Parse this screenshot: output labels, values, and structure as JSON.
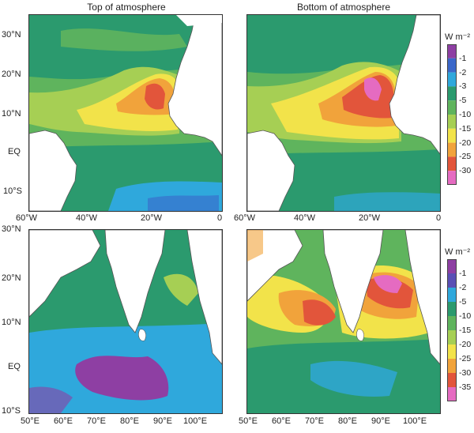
{
  "titles": {
    "left": "Top of atmosphere",
    "right": "Bottom of atmosphere"
  },
  "atlantic": {
    "lat_labels": [
      "30°N",
      "20°N",
      "10°N",
      "EQ",
      "10°S"
    ],
    "lon_labels": [
      "60°W",
      "40°W",
      "20°W",
      "0"
    ]
  },
  "indian": {
    "lat_labels": [
      "30°N",
      "20°N",
      "10°N",
      "EQ",
      "10°S"
    ],
    "lon_labels": [
      "50°E",
      "60°E",
      "70°E",
      "80°E",
      "90°E",
      "100°E"
    ]
  },
  "colorbar_top": {
    "unit": "W m⁻²",
    "levels": [
      "-1",
      "-2",
      "-3",
      "-5",
      "-10",
      "-15",
      "-20",
      "-25",
      "-30"
    ],
    "colors": [
      "#8e3fa3",
      "#3b67c9",
      "#2fa8dc",
      "#2b9a6e",
      "#5fb45d",
      "#a6cf54",
      "#f2e34a",
      "#f1a33b",
      "#e2553b",
      "#e56bc1"
    ]
  },
  "colorbar_bottom": {
    "unit": "W m⁻²",
    "levels": [
      "-1",
      "-2",
      "-5",
      "-10",
      "-15",
      "-20",
      "-25",
      "-30",
      "-35"
    ],
    "colors": [
      "#8e3fa3",
      "#5a4fb5",
      "#2fa8dc",
      "#2b9a6e",
      "#5fb45d",
      "#a6cf54",
      "#f2e34a",
      "#f1a33b",
      "#e2553b",
      "#e56bc1"
    ]
  },
  "colors": {
    "land": "#ffffff",
    "dark_green": "#2b9a6e",
    "mid_green": "#5fb45d",
    "light_green": "#a6cf54",
    "yellow": "#f2e34a",
    "orange": "#f1a33b",
    "red": "#e2553b",
    "pink": "#e56bc1",
    "cyan": "#2fa8dc",
    "blue": "#3b67c9",
    "purple": "#8e3fa3"
  }
}
